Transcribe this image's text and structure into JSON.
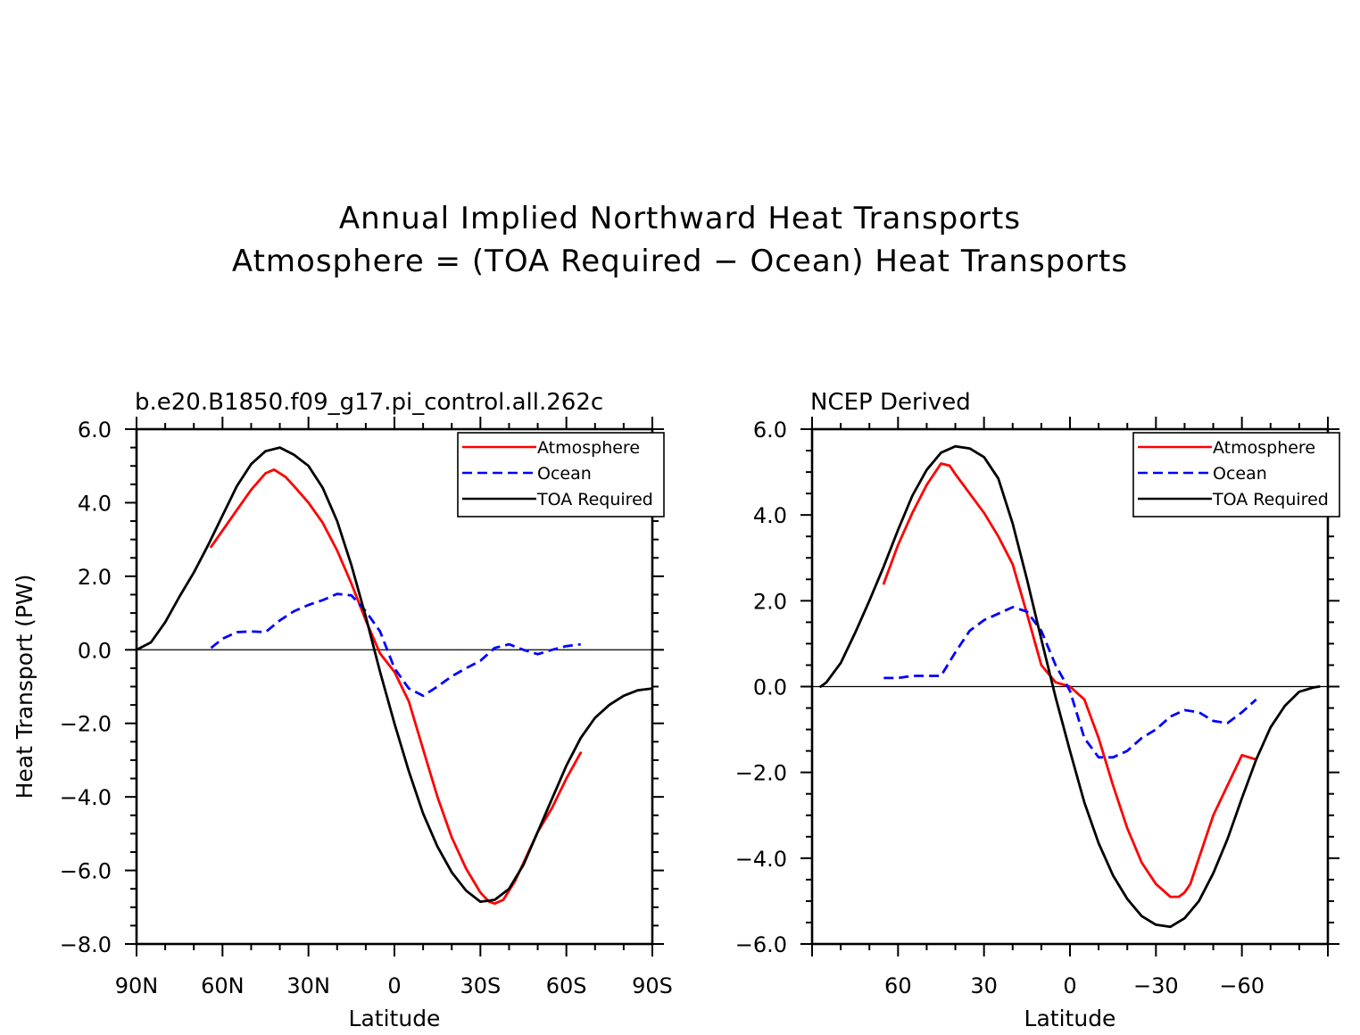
{
  "figure": {
    "title_line1": "Annual Implied Northward Heat Transports",
    "title_line2": "Atmosphere = (TOA Required − Ocean) Heat Transports"
  },
  "chart_data": [
    {
      "type": "line",
      "title": "b.e20.B1850.f09_g17.pi_control.all.262c",
      "xlabel": "Latitude",
      "ylabel": "Heat Transport (PW)",
      "xlim": [
        90,
        -90
      ],
      "ylim": [
        -8,
        6
      ],
      "xticks": [
        90,
        60,
        30,
        0,
        -30,
        -60,
        -90
      ],
      "xtick_labels": [
        "90N",
        "60N",
        "30N",
        "0",
        "30S",
        "60S",
        "90S"
      ],
      "yticks": [
        6,
        4,
        2,
        0,
        -2,
        -4,
        -6,
        -8
      ],
      "ytick_labels": [
        "6.0",
        "4.0",
        "2.0",
        "0.0",
        "−2.0",
        "−4.0",
        "−6.0",
        "−8.0"
      ],
      "legend": "top-right",
      "zero_line": true,
      "series": [
        {
          "name": "Atmosphere",
          "color": "#ff0000",
          "dash": "solid",
          "x": [
            64,
            55,
            50,
            45,
            42,
            38,
            35,
            30,
            25,
            20,
            15,
            10,
            5,
            0,
            -5,
            -10,
            -15,
            -20,
            -25,
            -30,
            -33,
            -35,
            -38,
            -42,
            -45,
            -50,
            -55,
            -60,
            -65
          ],
          "y": [
            2.8,
            3.8,
            4.35,
            4.8,
            4.9,
            4.7,
            4.45,
            4.0,
            3.45,
            2.7,
            1.8,
            0.8,
            -0.1,
            -0.6,
            -1.4,
            -2.7,
            -4.0,
            -5.1,
            -5.95,
            -6.6,
            -6.85,
            -6.9,
            -6.8,
            -6.3,
            -5.8,
            -4.95,
            -4.3,
            -3.5,
            -2.8
          ]
        },
        {
          "name": "Ocean",
          "color": "#0000ff",
          "dash": "dashed",
          "x": [
            64,
            60,
            55,
            50,
            45,
            40,
            35,
            30,
            25,
            20,
            15,
            10,
            5,
            0,
            -5,
            -10,
            -15,
            -20,
            -25,
            -30,
            -35,
            -40,
            -45,
            -50,
            -55,
            -60,
            -65
          ],
          "y": [
            0.05,
            0.3,
            0.48,
            0.5,
            0.48,
            0.8,
            1.05,
            1.22,
            1.35,
            1.52,
            1.48,
            1.05,
            0.5,
            -0.5,
            -1.05,
            -1.25,
            -1.0,
            -0.72,
            -0.5,
            -0.3,
            0.05,
            0.15,
            0.0,
            -0.12,
            0.0,
            0.1,
            0.15
          ]
        },
        {
          "name": "TOA Required",
          "color": "#000000",
          "dash": "solid",
          "x": [
            90,
            85,
            80,
            75,
            70,
            65,
            60,
            55,
            50,
            45,
            40,
            35,
            30,
            25,
            20,
            15,
            10,
            5,
            0,
            -5,
            -10,
            -15,
            -20,
            -25,
            -30,
            -35,
            -40,
            -45,
            -50,
            -55,
            -60,
            -65,
            -70,
            -75,
            -80,
            -85,
            -90
          ],
          "y": [
            0.0,
            0.2,
            0.75,
            1.45,
            2.1,
            2.85,
            3.65,
            4.45,
            5.05,
            5.4,
            5.5,
            5.3,
            5.0,
            4.4,
            3.5,
            2.3,
            0.9,
            -0.6,
            -2.0,
            -3.3,
            -4.45,
            -5.35,
            -6.05,
            -6.55,
            -6.85,
            -6.8,
            -6.5,
            -5.85,
            -4.95,
            -4.05,
            -3.15,
            -2.4,
            -1.85,
            -1.5,
            -1.25,
            -1.1,
            -1.05
          ]
        }
      ]
    },
    {
      "type": "line",
      "title": "NCEP Derived",
      "xlabel": "Latitude",
      "ylabel": "",
      "xlim": [
        90,
        -90
      ],
      "ylim": [
        -6,
        6
      ],
      "xticks": [
        60,
        30,
        0,
        -30,
        -60
      ],
      "xtick_labels": [
        "60",
        "30",
        "0",
        "−30",
        "−60"
      ],
      "yticks": [
        6,
        4,
        2,
        0,
        -2,
        -4,
        -6
      ],
      "ytick_labels": [
        "6.0",
        "4.0",
        "2.0",
        "0.0",
        "−2.0",
        "−4.0",
        "−6.0"
      ],
      "legend": "top-right",
      "zero_line": true,
      "series": [
        {
          "name": "Atmosphere",
          "color": "#ff0000",
          "dash": "solid",
          "x": [
            65,
            60,
            55,
            50,
            45,
            42,
            40,
            35,
            30,
            25,
            20,
            15,
            10,
            5,
            0,
            -5,
            -10,
            -15,
            -20,
            -25,
            -30,
            -35,
            -38,
            -40,
            -42,
            -45,
            -50,
            -55,
            -60,
            -65
          ],
          "y": [
            2.4,
            3.3,
            4.05,
            4.7,
            5.2,
            5.15,
            4.95,
            4.5,
            4.05,
            3.5,
            2.85,
            1.7,
            0.5,
            0.1,
            0.0,
            -0.3,
            -1.2,
            -2.3,
            -3.3,
            -4.1,
            -4.6,
            -4.9,
            -4.9,
            -4.8,
            -4.6,
            -4.0,
            -3.0,
            -2.3,
            -1.6,
            -1.7
          ]
        },
        {
          "name": "Ocean",
          "color": "#0000ff",
          "dash": "dashed",
          "x": [
            65,
            60,
            55,
            50,
            45,
            40,
            35,
            30,
            25,
            20,
            15,
            10,
            5,
            0,
            -5,
            -10,
            -15,
            -20,
            -25,
            -30,
            -35,
            -40,
            -45,
            -50,
            -55,
            -60,
            -65
          ],
          "y": [
            0.2,
            0.2,
            0.25,
            0.25,
            0.25,
            0.8,
            1.3,
            1.55,
            1.7,
            1.85,
            1.75,
            1.3,
            0.5,
            -0.1,
            -1.2,
            -1.65,
            -1.65,
            -1.5,
            -1.2,
            -1.0,
            -0.7,
            -0.55,
            -0.6,
            -0.8,
            -0.85,
            -0.6,
            -0.3
          ]
        },
        {
          "name": "TOA Required",
          "color": "#000000",
          "dash": "solid",
          "x": [
            87,
            85,
            80,
            75,
            70,
            65,
            60,
            55,
            50,
            45,
            40,
            35,
            30,
            25,
            20,
            15,
            10,
            5,
            0,
            -5,
            -10,
            -15,
            -20,
            -25,
            -30,
            -35,
            -40,
            -45,
            -50,
            -55,
            -60,
            -65,
            -70,
            -75,
            -80,
            -85,
            -87
          ],
          "y": [
            0.0,
            0.1,
            0.55,
            1.25,
            2.0,
            2.8,
            3.65,
            4.45,
            5.05,
            5.45,
            5.6,
            5.55,
            5.35,
            4.85,
            3.8,
            2.5,
            1.1,
            -0.25,
            -1.5,
            -2.7,
            -3.65,
            -4.4,
            -4.95,
            -5.35,
            -5.55,
            -5.6,
            -5.4,
            -5.0,
            -4.35,
            -3.55,
            -2.6,
            -1.7,
            -0.95,
            -0.45,
            -0.12,
            -0.02,
            0.0
          ]
        }
      ]
    }
  ]
}
